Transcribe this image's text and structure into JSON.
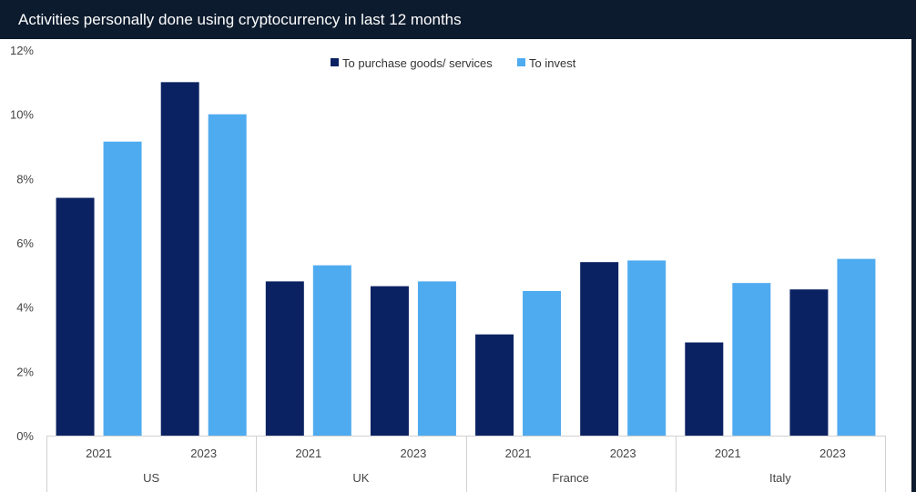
{
  "chart_data": {
    "type": "bar",
    "title": "Activities personally done using cryptocurrency in last 12 months",
    "xlabel": "",
    "ylabel": "",
    "ylim": [
      0,
      12
    ],
    "yticks": [
      "0%",
      "2%",
      "4%",
      "6%",
      "8%",
      "10%",
      "12%"
    ],
    "grid": false,
    "legend_position": "top-center",
    "groups": [
      {
        "name": "US",
        "years": [
          "2021",
          "2023"
        ]
      },
      {
        "name": "UK",
        "years": [
          "2021",
          "2023"
        ]
      },
      {
        "name": "France",
        "years": [
          "2021",
          "2023"
        ]
      },
      {
        "name": "Italy",
        "years": [
          "2021",
          "2023"
        ]
      }
    ],
    "categories": [
      "US 2021",
      "US 2023",
      "UK 2021",
      "UK 2023",
      "France 2021",
      "France 2023",
      "Italy 2021",
      "Italy 2023"
    ],
    "series": [
      {
        "name": "To purchase goods/ services",
        "color": "#0b2262",
        "values": [
          7.4,
          11.0,
          4.8,
          4.65,
          3.15,
          5.4,
          2.9,
          4.55
        ]
      },
      {
        "name": "To invest",
        "color": "#4fabf0",
        "values": [
          9.15,
          10.0,
          5.3,
          4.8,
          4.5,
          5.45,
          4.75,
          5.5
        ]
      }
    ]
  }
}
